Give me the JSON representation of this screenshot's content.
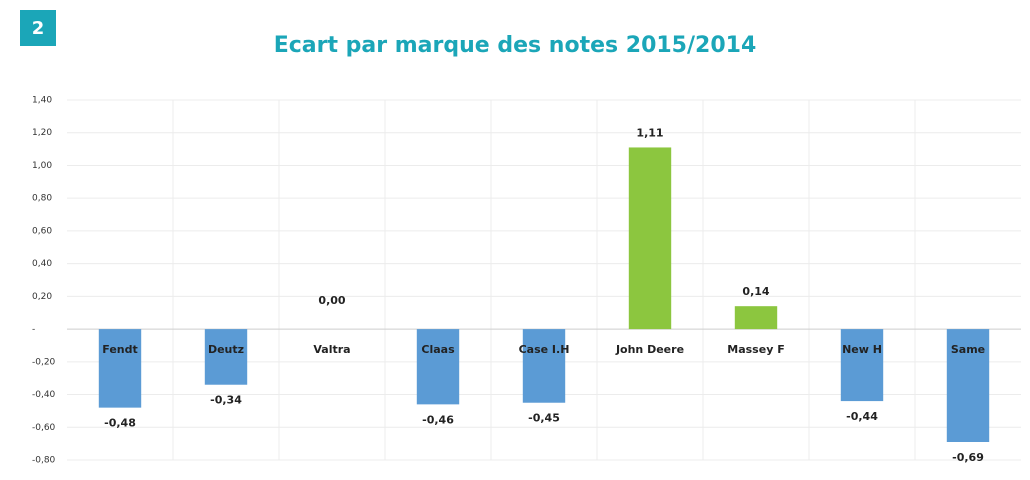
{
  "badge": "2",
  "chart_data": {
    "type": "bar",
    "title": "Ecart par marque des notes 2015/2014",
    "categories": [
      "Fendt",
      "Deutz",
      "Valtra",
      "Claas",
      "Case I.H",
      "John Deere",
      "Massey F",
      "New H",
      "Same"
    ],
    "values": [
      -0.48,
      -0.34,
      0,
      -0.46,
      -0.45,
      1.11,
      0.14,
      -0.44,
      -0.69
    ],
    "value_labels": [
      "-0,48",
      "-0,34",
      "0,00",
      "-0,46",
      "-0,45",
      "1,11",
      "0,14",
      "-0,44",
      "-0,69"
    ],
    "colors": [
      "#5b9bd5",
      "#5b9bd5",
      "#5b9bd5",
      "#5b9bd5",
      "#5b9bd5",
      "#8cc63f",
      "#8cc63f",
      "#5b9bd5",
      "#5b9bd5"
    ],
    "ylim": [
      -0.8,
      1.4
    ],
    "yticks": [
      {
        "value": 1.4,
        "label": "1,40"
      },
      {
        "value": 1.2,
        "label": "1,20"
      },
      {
        "value": 1,
        "label": "1,00"
      },
      {
        "value": 0.8,
        "label": "0,80"
      },
      {
        "value": 0.6,
        "label": "0,60"
      },
      {
        "value": 0.4,
        "label": "0,40"
      },
      {
        "value": 0.2,
        "label": "0,20"
      },
      {
        "value": 0,
        "label": "-"
      },
      {
        "value": -0.2,
        "label": "-0,20"
      },
      {
        "value": -0.4,
        "label": "-0,40"
      },
      {
        "value": -0.6,
        "label": "-0,60"
      },
      {
        "value": -0.8,
        "label": "-0,80"
      }
    ],
    "grid": true
  }
}
